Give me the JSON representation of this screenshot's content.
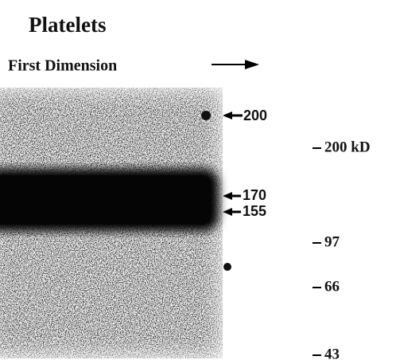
{
  "header": {
    "title": "Platelets",
    "subtitle": "First Dimension"
  },
  "band_labels": [
    "200",
    "170",
    "155"
  ],
  "markers": [
    "200 kD",
    "97",
    "66",
    "43"
  ]
}
